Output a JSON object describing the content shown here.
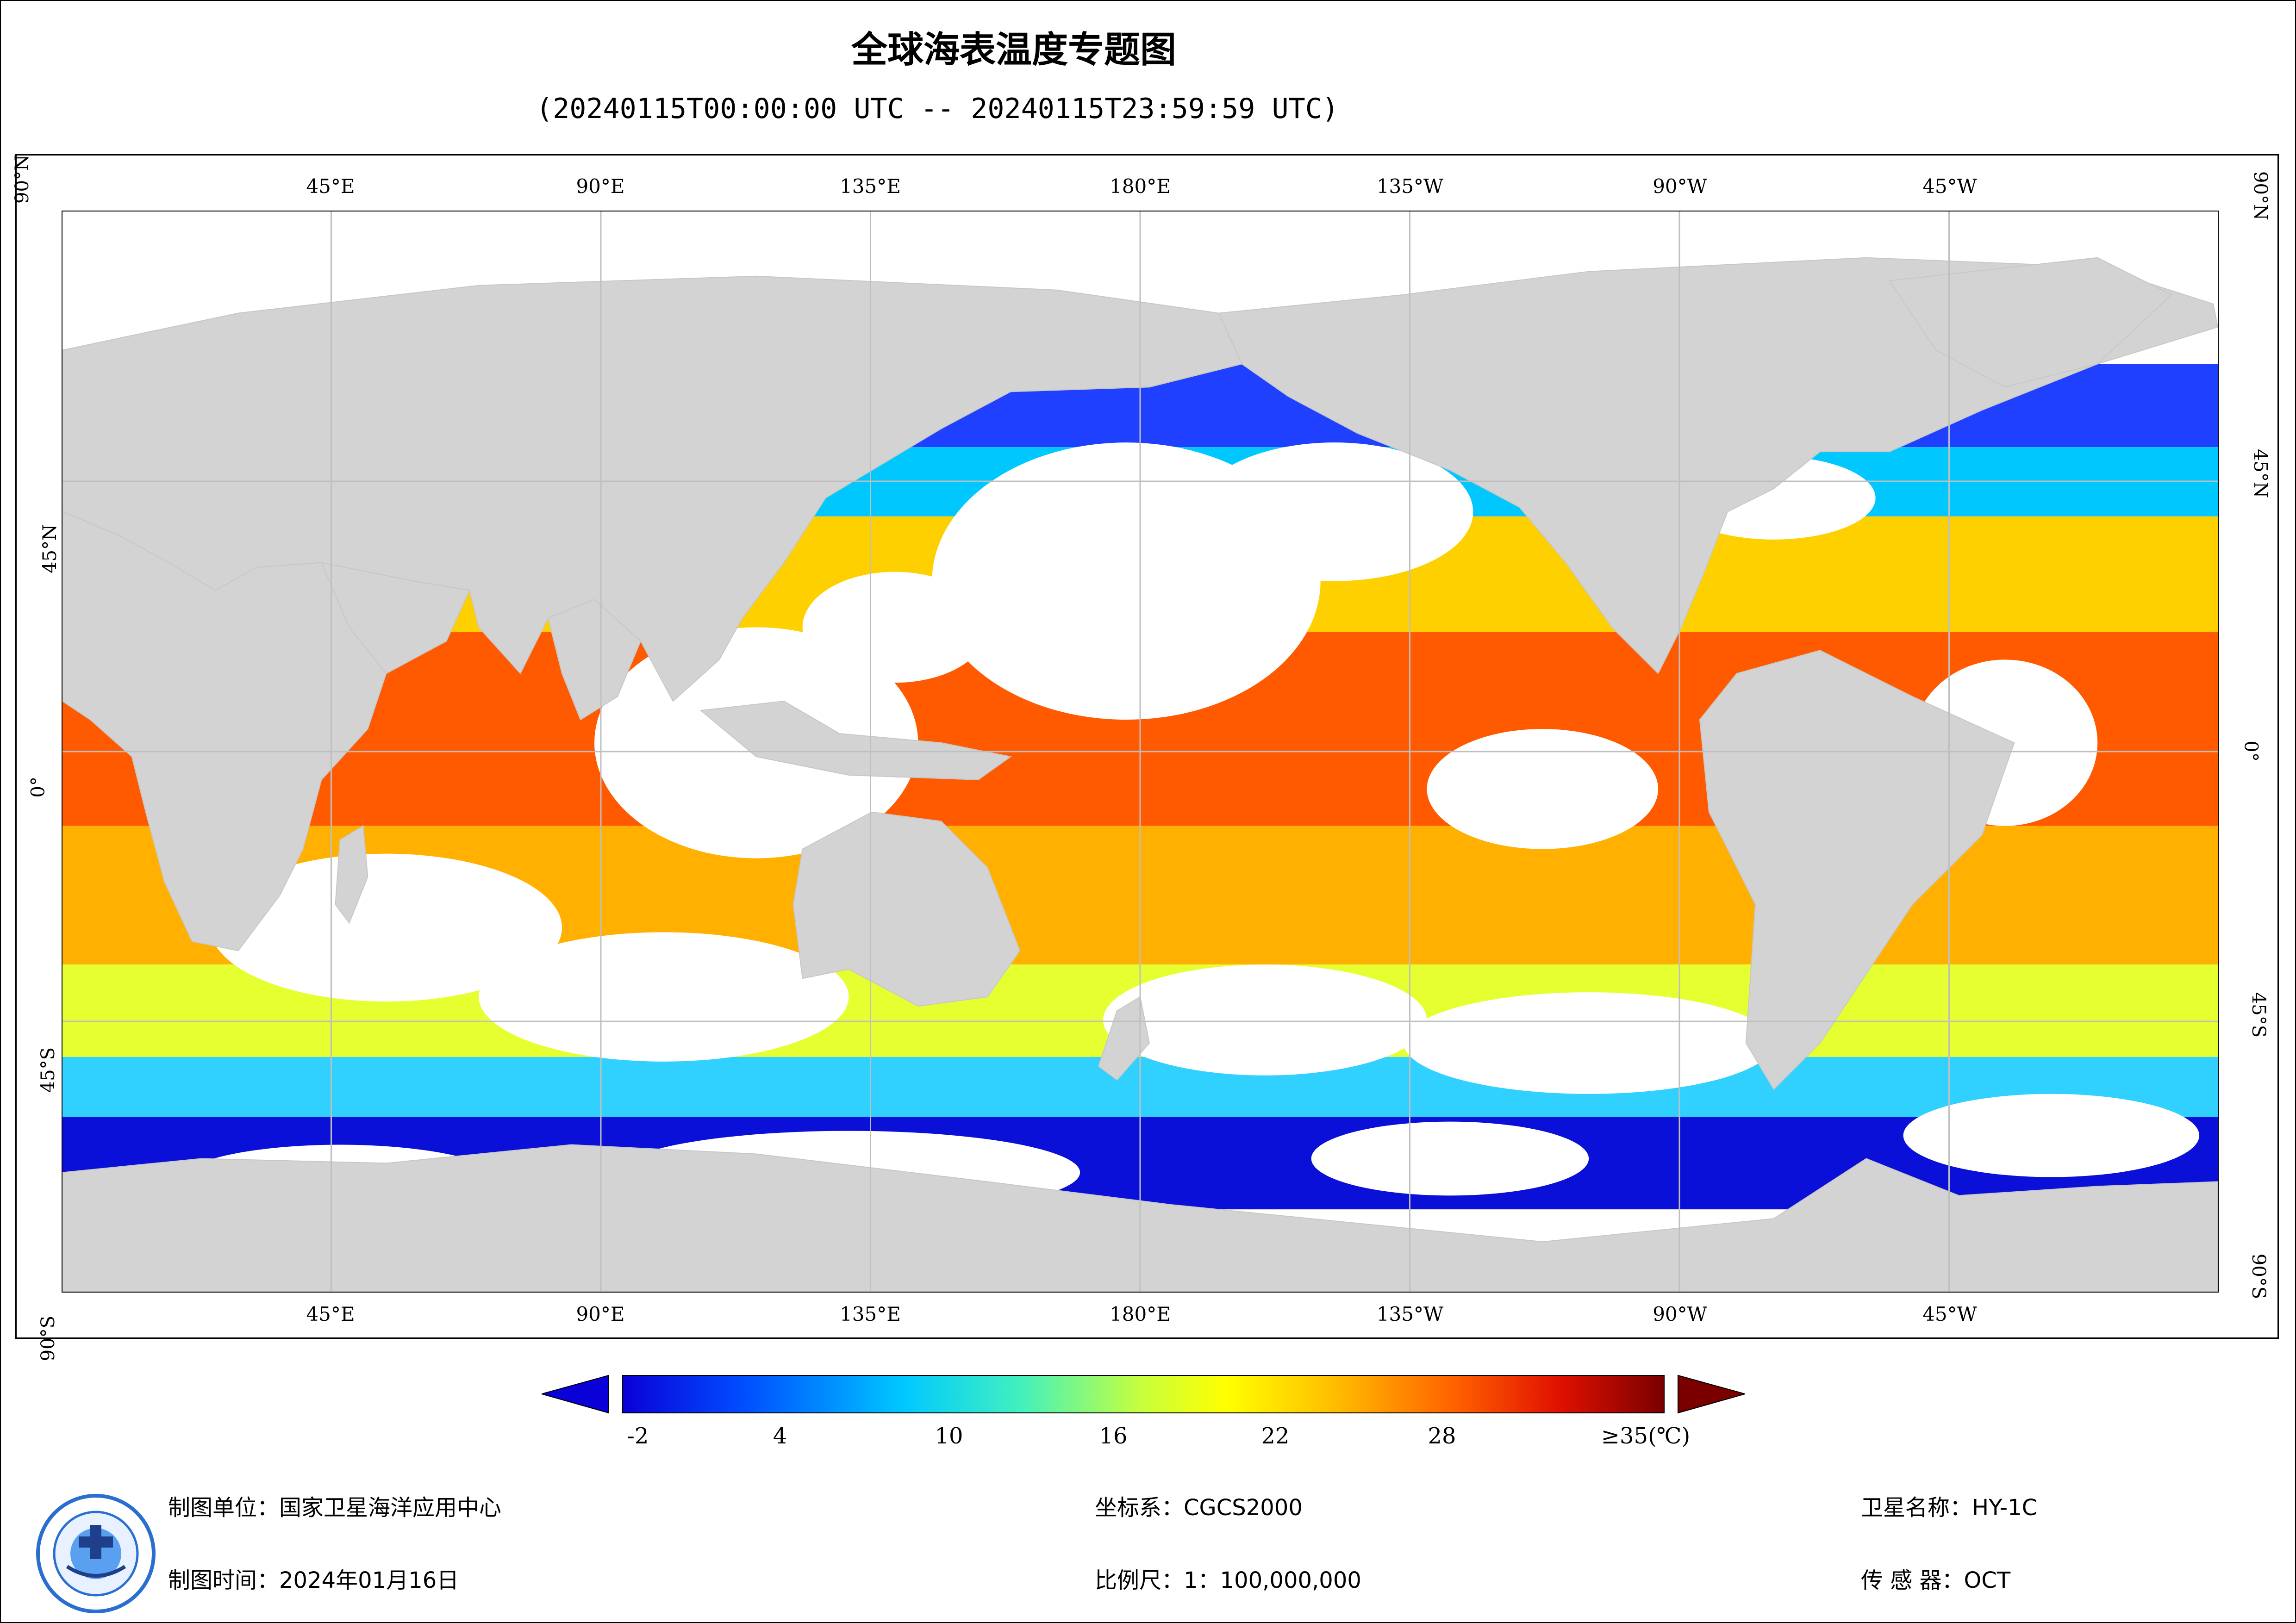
{
  "title": "全球海表温度专题图",
  "subtitle": "(20240115T00:00:00 UTC -- 20240115T23:59:59 UTC)",
  "map": {
    "lon_labels": [
      "45°E",
      "90°E",
      "135°E",
      "180°E",
      "135°W",
      "90°W",
      "45°W"
    ],
    "lat_labels": [
      "90°N",
      "45°N",
      "0°",
      "45°S",
      "90°S"
    ],
    "land_color": "#d3d3d3",
    "cloud_color": "#ffffff",
    "grid_color": "#bfbfbf"
  },
  "colorbar": {
    "tick_labels": [
      "-2",
      "4",
      "10",
      "16",
      "22",
      "28",
      "≥35(℃)"
    ],
    "colors": [
      "#0a00d8",
      "#0050ff",
      "#00c8ff",
      "#40f0c0",
      "#c8ff3c",
      "#ffff00",
      "#ffc000",
      "#ff6000",
      "#e01000",
      "#7a0000"
    ],
    "min": -2,
    "max": 35
  },
  "footer": {
    "org_label": "制图单位：国家卫星海洋应用中心",
    "date_label": "制图时间：2024年01月16日",
    "crs_label": "坐标系：CGCS2000",
    "scale_label": "比例尺：1：100,000,000",
    "satellite_label": "卫星名称：HY-1C",
    "sensor_label": "传 感 器：OCT"
  }
}
